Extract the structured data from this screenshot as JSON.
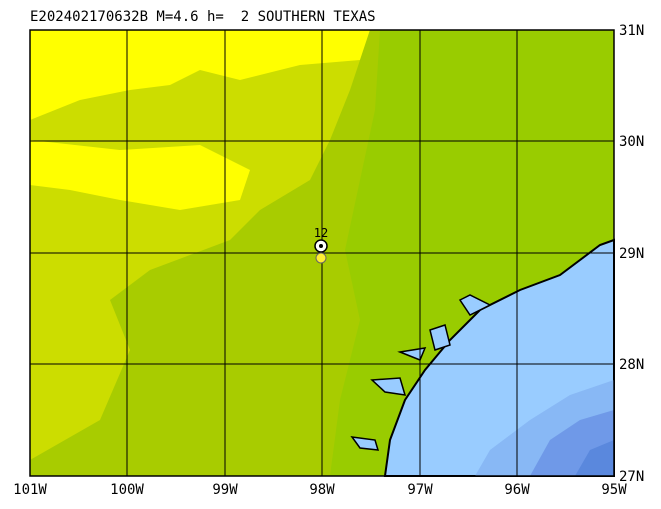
{
  "header": {
    "title": "E202402170632B M=4.6 h=  2 SOUTHERN TEXAS"
  },
  "map": {
    "lat_labels": [
      "31N",
      "30N",
      "29N",
      "28N",
      "27N"
    ],
    "lon_labels": [
      "101W",
      "100W",
      "99W",
      "98W",
      "97W",
      "96W",
      "95W"
    ],
    "station_label": "12"
  }
}
